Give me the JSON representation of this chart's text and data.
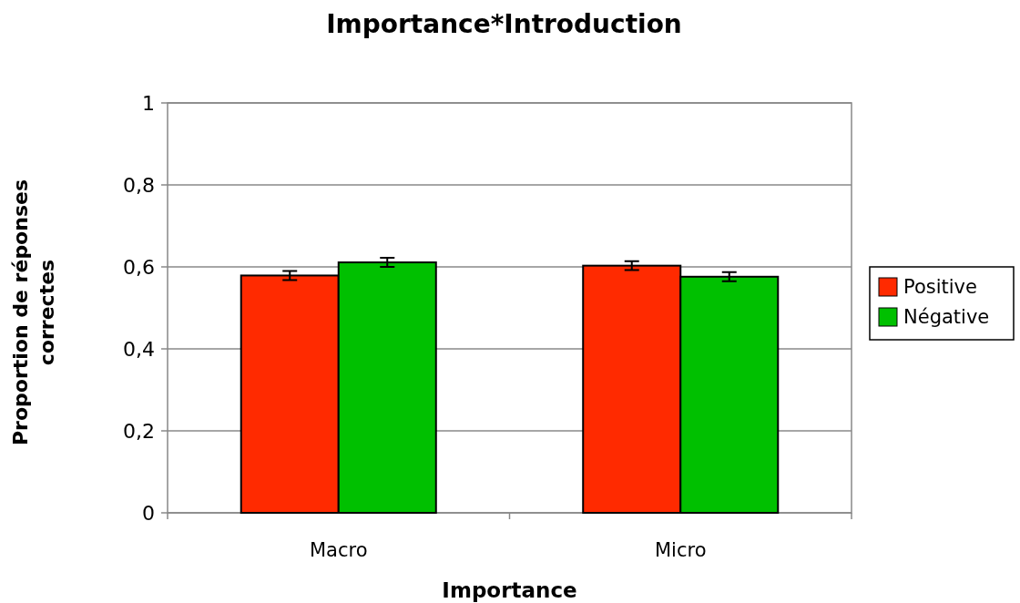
{
  "chart_data": {
    "type": "bar",
    "title": "Importance*Introduction",
    "xlabel": "Importance",
    "ylabel": "Proportion de réponses\ncorrectes",
    "categories": [
      "Macro",
      "Micro"
    ],
    "series": [
      {
        "name": "Positive",
        "color": "#ff2a00",
        "values": [
          0.579,
          0.603
        ],
        "errors": [
          0.011,
          0.011
        ]
      },
      {
        "name": "Négative",
        "color": "#00c000",
        "values": [
          0.611,
          0.576
        ],
        "errors": [
          0.011,
          0.011
        ]
      }
    ],
    "ylim": [
      0,
      1
    ],
    "yticks": [
      0,
      {
        "value": 0.2,
        "label": "0,2"
      },
      {
        "value": 0.4,
        "label": "0,4"
      },
      {
        "value": 0.6,
        "label": "0,6"
      },
      {
        "value": 0.8,
        "label": "0,8"
      },
      1
    ],
    "grid": "y",
    "legend": "right"
  }
}
